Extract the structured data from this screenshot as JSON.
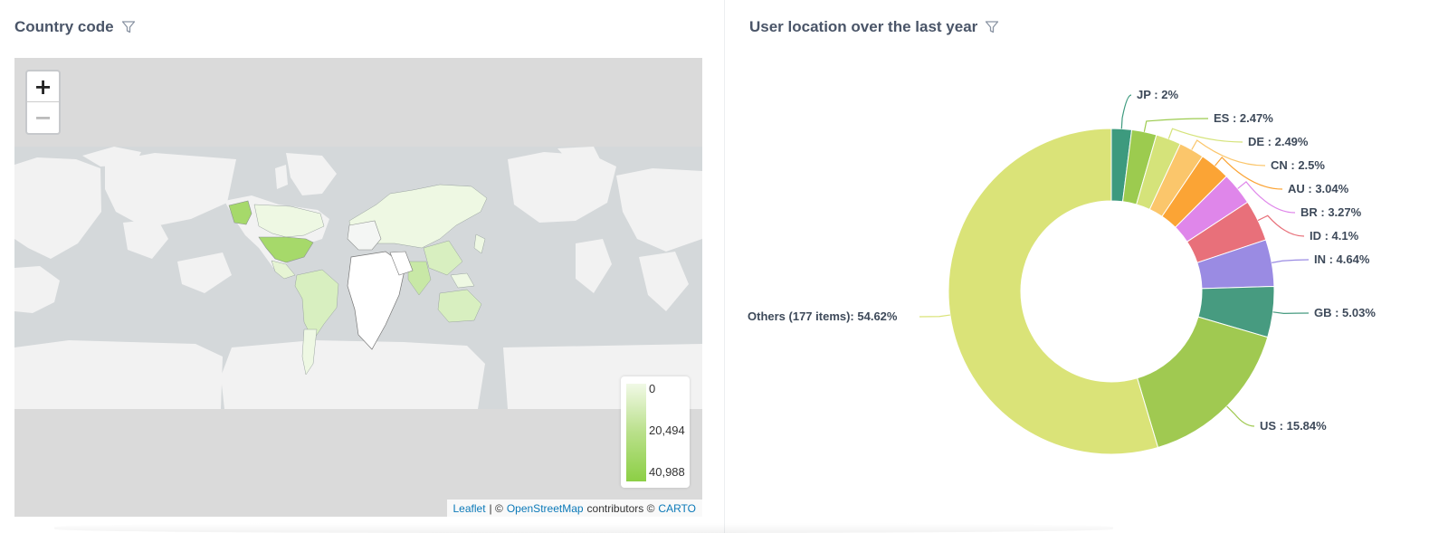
{
  "left_panel": {
    "title": "Country code",
    "filter_icon": "filter-icon",
    "map": {
      "zoom_in_label": "+",
      "zoom_out_label": "−",
      "legend": {
        "colors": [
          "#f1f9e6",
          "#b9e08a",
          "#8ccf45"
        ],
        "labels": [
          "0",
          "20,494",
          "40,988"
        ]
      },
      "attribution": {
        "leaflet": "Leaflet",
        "sep1": "| ©",
        "osm": "OpenStreetMap",
        "mid": "contributors ©",
        "carto": "CARTO"
      }
    }
  },
  "right_panel": {
    "title": "User location over the last year",
    "filter_icon": "filter-icon"
  },
  "chart_data": {
    "type": "pie",
    "title": "User location over the last year",
    "donut": true,
    "slices": [
      {
        "label": "JP",
        "value": 2,
        "color": "#3d9a7e"
      },
      {
        "label": "ES",
        "value": 2.47,
        "color": "#9ccb4f"
      },
      {
        "label": "DE",
        "value": 2.49,
        "color": "#d5e37a"
      },
      {
        "label": "CN",
        "value": 2.5,
        "color": "#fbc66b"
      },
      {
        "label": "AU",
        "value": 3.04,
        "color": "#fba435"
      },
      {
        "label": "BR",
        "value": 3.27,
        "color": "#df86ea"
      },
      {
        "label": "ID",
        "value": 4.1,
        "color": "#e8707a"
      },
      {
        "label": "IN",
        "value": 4.64,
        "color": "#9a8be3"
      },
      {
        "label": "GB",
        "value": 5.03,
        "color": "#479b80"
      },
      {
        "label": "US",
        "value": 15.84,
        "color": "#a0c951"
      },
      {
        "label": "Others (177 items)",
        "value": 54.62,
        "color": "#dae378"
      }
    ],
    "data_labels": [
      "JP : 2%",
      "ES : 2.47%",
      "DE : 2.49%",
      "CN : 2.5%",
      "AU : 3.04%",
      "BR : 3.27%",
      "ID : 4.1%",
      "IN : 4.64%",
      "GB : 5.03%",
      "US : 15.84%",
      "Others (177 items): 54.62%"
    ]
  }
}
